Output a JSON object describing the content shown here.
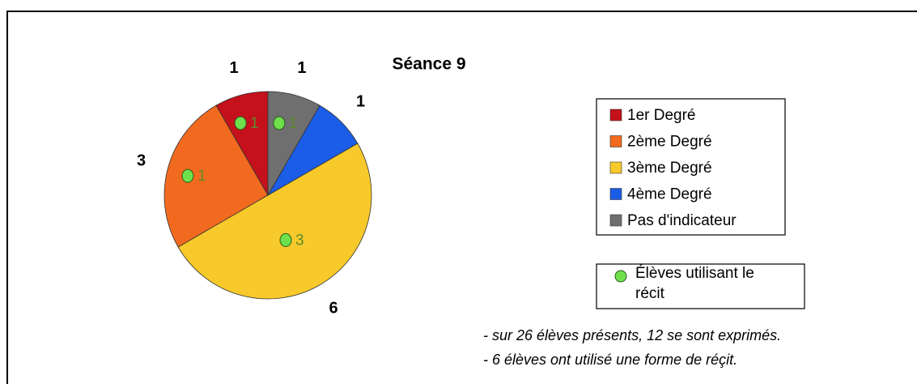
{
  "chart_data": {
    "type": "pie",
    "title": "Séance 9",
    "categories": [
      "1er Degré",
      "2ème Degré",
      "3ème Degré",
      "4ème Degré",
      "Pas d'indicateur"
    ],
    "values": [
      1,
      3,
      6,
      1,
      1
    ],
    "colors": [
      "#c4111b",
      "#f26a1f",
      "#f8c92a",
      "#1b5de6",
      "#6f6f6f"
    ],
    "recit_name": "Élèves utilisant le récit",
    "recit_color": "#6ee04c",
    "recit_values": [
      1,
      1,
      3,
      null,
      1
    ],
    "notes": [
      "- sur 26 élèves présents, 12 se sont exprimés.",
      "- 6 élèves ont utilisé une forme de réçit."
    ]
  }
}
